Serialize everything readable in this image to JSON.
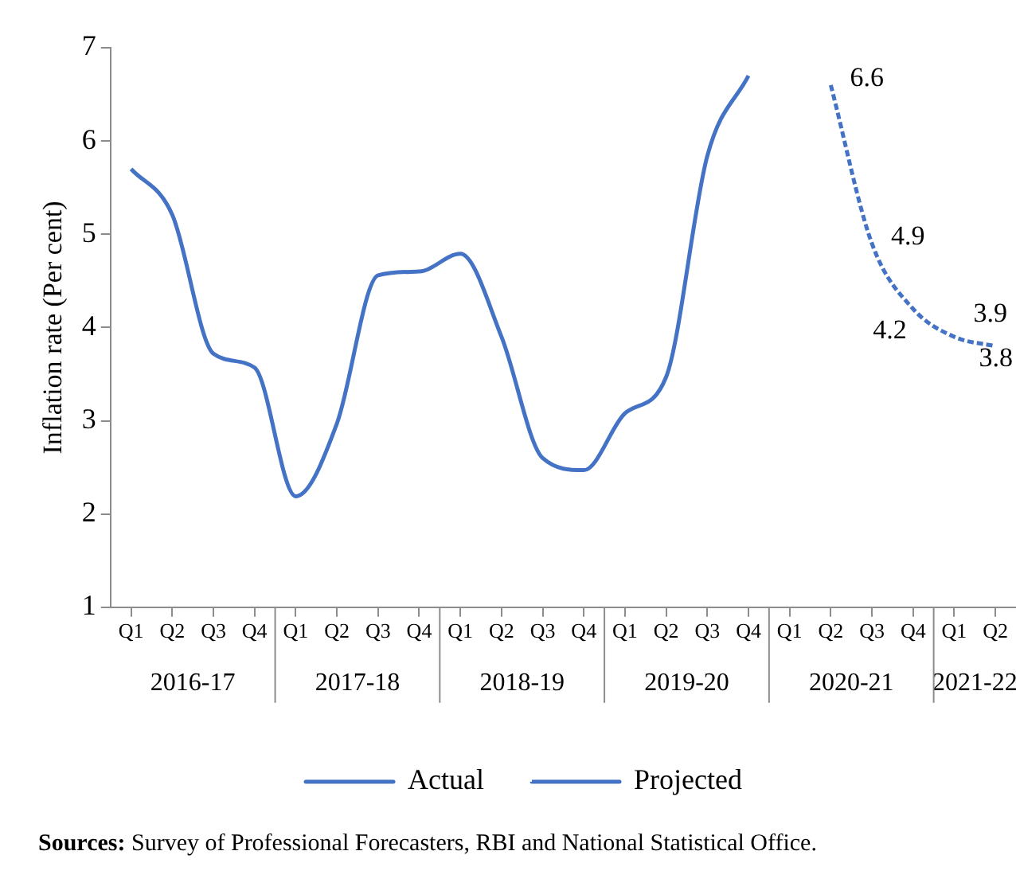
{
  "chart_data": {
    "type": "line",
    "ylabel": "Inflation rate (Per cent)",
    "categories": [
      "Q1",
      "Q2",
      "Q3",
      "Q4",
      "Q1",
      "Q2",
      "Q3",
      "Q4",
      "Q1",
      "Q2",
      "Q3",
      "Q4",
      "Q1",
      "Q2",
      "Q3",
      "Q4",
      "Q1",
      "Q2",
      "Q3",
      "Q4",
      "Q1",
      "Q2"
    ],
    "series": [
      {
        "name": "Actual",
        "color": "#4472c4",
        "line_style": "solid",
        "values": [
          5.7,
          5.21,
          3.72,
          3.57,
          2.19,
          2.97,
          4.56,
          4.6,
          4.79,
          3.9,
          2.6,
          2.47,
          3.08,
          3.47,
          5.84,
          6.7,
          null,
          null,
          null,
          null,
          null,
          null
        ]
      },
      {
        "name": "Projected",
        "color": "#4472c4",
        "line_style": "dashed",
        "values": [
          null,
          null,
          null,
          null,
          null,
          null,
          null,
          null,
          null,
          null,
          null,
          null,
          null,
          null,
          null,
          null,
          null,
          6.6,
          4.9,
          4.2,
          3.9,
          3.8
        ],
        "value_labels": [
          null,
          null,
          null,
          null,
          null,
          null,
          null,
          null,
          null,
          null,
          null,
          null,
          null,
          null,
          null,
          null,
          null,
          "6.6",
          "4.9",
          "4.2",
          "3.9",
          "3.8"
        ]
      }
    ],
    "ylim": [
      1,
      7
    ],
    "yticks": [
      1,
      2,
      3,
      4,
      5,
      6,
      7
    ],
    "grid": false,
    "legend": "bottom",
    "marker": "none",
    "annotations": [
      "2016-17",
      "2017-18",
      "2018-19",
      "2019-20",
      "2020-21",
      "2021-22",
      "Sources: Survey of Professional Forecasters, RBI and National Statistical Office."
    ]
  }
}
